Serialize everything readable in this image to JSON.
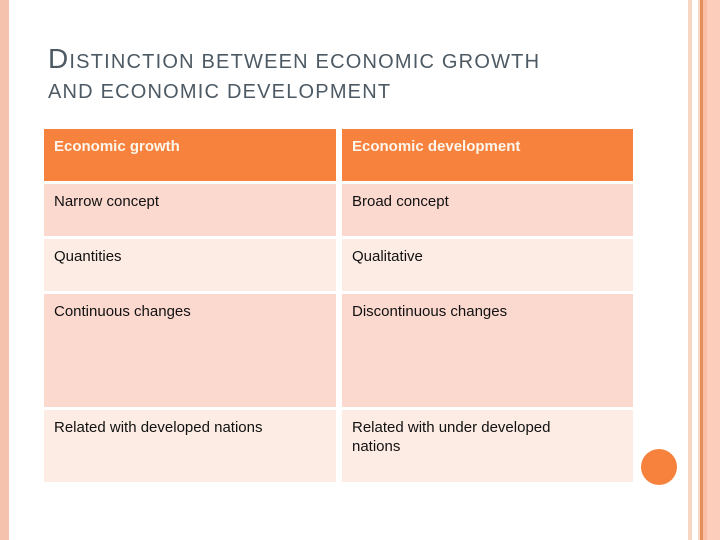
{
  "title": {
    "line1": "DISTINCTION BETWEEN ECONOMIC GROWTH",
    "line2": "AND ECONOMIC DEVELOPMENT"
  },
  "table": {
    "headers": [
      "Economic growth",
      "Economic development"
    ],
    "rows": [
      [
        "Narrow concept",
        "Broad concept"
      ],
      [
        "Quantities",
        "Qualitative"
      ],
      [
        "Continuous changes",
        "Discontinuous changes"
      ],
      [
        "Related with developed nations",
        "Related with under developed nations"
      ]
    ]
  },
  "colors": {
    "header_bg": "#f6823e",
    "header_text": "#fdf6ec",
    "row_band_dark": "#fbd9cf",
    "row_band_light": "#fdece4",
    "body_text": "#111111",
    "title_text": "#4d5a64",
    "left_stripe": "#f5c2ad",
    "right_stripe_light": "#f8d6c4",
    "right_stripe_line": "#e28e5d",
    "right_stripe_medium": "#f9bea5",
    "right_stripe_wide": "#fbcdba",
    "circle": "#f6823e"
  }
}
